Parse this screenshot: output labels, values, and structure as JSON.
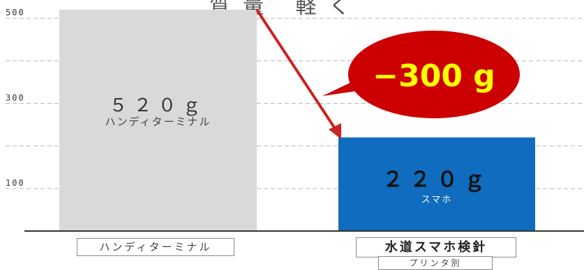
{
  "top_title": "質量 軽く",
  "chart_data": {
    "type": "bar",
    "categories": [
      "ハンディターミナル",
      "水道スマホ検針"
    ],
    "values": [
      520,
      220
    ],
    "bar_labels": [
      {
        "value": "５２０ｇ",
        "sub": "ハンディターミナル"
      },
      {
        "value": "２２０ｇ",
        "sub": "スマホ"
      }
    ],
    "category_note": "プリンタ別",
    "y_ticks": [
      100,
      300,
      500
    ],
    "ylim": [
      0,
      520
    ],
    "grid": true,
    "annotation": "−300 g",
    "colors": {
      "bar1": "#d9d9d9",
      "bar2": "#0f6cbf",
      "callout": "#cc0000",
      "callout_text": "#ffff00",
      "arrow": "#cc2222"
    }
  }
}
